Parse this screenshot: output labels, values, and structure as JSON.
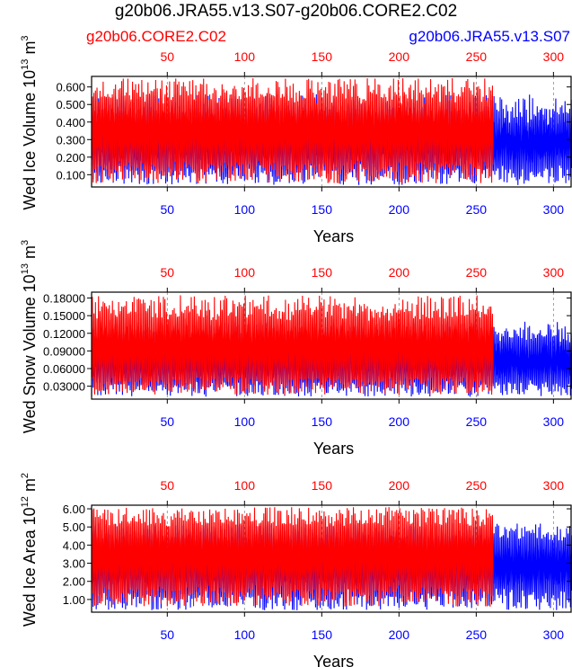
{
  "title": "g20b06.JRA55.v13.S07-g20b06.CORE2.C02",
  "legend": {
    "red_label": "g20b06.CORE2.C02",
    "blue_label": "g20b06.JRA55.v13.S07"
  },
  "colors": {
    "case_red": "#ff0000",
    "case_blue": "#0000ff",
    "ref_line": "#888888"
  },
  "chart_data": [
    {
      "type": "line",
      "title": "",
      "xlabel": "Years",
      "ylabel_main": "Wed Ice Volume 10",
      "ylabel_exp": "13",
      "ylabel_unit": " m",
      "ylabel_unit_exp": "3",
      "xlim": [
        1,
        312
      ],
      "ylim": [
        0.03,
        0.66
      ],
      "y_ticks": [
        "0.100",
        "0.200",
        "0.300",
        "0.400",
        "0.500",
        "0.600"
      ],
      "y_tick_values": [
        0.1,
        0.2,
        0.3,
        0.4,
        0.5,
        0.6
      ],
      "top_ticks": [
        "50",
        "100",
        "150",
        "200",
        "250",
        "300"
      ],
      "bottom_ticks": [
        "50",
        "100",
        "150",
        "200",
        "250",
        "300"
      ],
      "tick_values": [
        50,
        100,
        150,
        200,
        250,
        300
      ],
      "series": [
        {
          "name": "g20b06.JRA55.v13.S07",
          "color": "#0000ff",
          "years": [
            1,
            312
          ],
          "min_range": [
            0.04,
            0.16
          ],
          "max_range": [
            0.38,
            0.56
          ]
        },
        {
          "name": "g20b06.CORE2.C02",
          "color": "#ff0000",
          "years": [
            1,
            261
          ],
          "min_range": [
            0.05,
            0.18
          ],
          "max_range": [
            0.5,
            0.65
          ]
        }
      ]
    },
    {
      "type": "line",
      "title": "",
      "xlabel": "Years",
      "ylabel_main": "Wed Snow Volume 10",
      "ylabel_exp": "13",
      "ylabel_unit": " m",
      "ylabel_unit_exp": "3",
      "xlim": [
        1,
        312
      ],
      "ylim": [
        0.008,
        0.19
      ],
      "y_ticks": [
        "0.03000",
        "0.06000",
        "0.09000",
        "0.12000",
        "0.15000",
        "0.18000"
      ],
      "y_tick_values": [
        0.03,
        0.06,
        0.09,
        0.12,
        0.15,
        0.18
      ],
      "top_ticks": [
        "50",
        "100",
        "150",
        "200",
        "250",
        "300"
      ],
      "bottom_ticks": [
        "50",
        "100",
        "150",
        "200",
        "250",
        "300"
      ],
      "tick_values": [
        50,
        100,
        150,
        200,
        250,
        300
      ],
      "series": [
        {
          "name": "g20b06.JRA55.v13.S07",
          "color": "#0000ff",
          "years": [
            1,
            312
          ],
          "min_range": [
            0.012,
            0.04
          ],
          "max_range": [
            0.1,
            0.14
          ]
        },
        {
          "name": "g20b06.CORE2.C02",
          "color": "#ff0000",
          "years": [
            1,
            261
          ],
          "min_range": [
            0.015,
            0.045
          ],
          "max_range": [
            0.14,
            0.185
          ]
        }
      ]
    },
    {
      "type": "line",
      "title": "",
      "xlabel": "Years",
      "ylabel_main": "Wed Ice Area 10",
      "ylabel_exp": "12",
      "ylabel_unit": " m",
      "ylabel_unit_exp": "2",
      "xlim": [
        1,
        312
      ],
      "ylim": [
        0.3,
        6.2
      ],
      "y_ticks": [
        "1.00",
        "2.00",
        "3.00",
        "4.00",
        "5.00",
        "6.00"
      ],
      "y_tick_values": [
        1,
        2,
        3,
        4,
        5,
        6
      ],
      "top_ticks": [
        "50",
        "100",
        "150",
        "200",
        "250",
        "300"
      ],
      "bottom_ticks": [
        "50",
        "100",
        "150",
        "200",
        "250",
        "300"
      ],
      "tick_values": [
        50,
        100,
        150,
        200,
        250,
        300
      ],
      "series": [
        {
          "name": "g20b06.JRA55.v13.S07",
          "color": "#0000ff",
          "years": [
            1,
            312
          ],
          "min_range": [
            0.4,
            1.6
          ],
          "max_range": [
            4.2,
            5.2
          ]
        },
        {
          "name": "g20b06.CORE2.C02",
          "color": "#ff0000",
          "years": [
            1,
            261
          ],
          "min_range": [
            0.6,
            1.8
          ],
          "max_range": [
            5.0,
            6.1
          ]
        }
      ]
    }
  ]
}
